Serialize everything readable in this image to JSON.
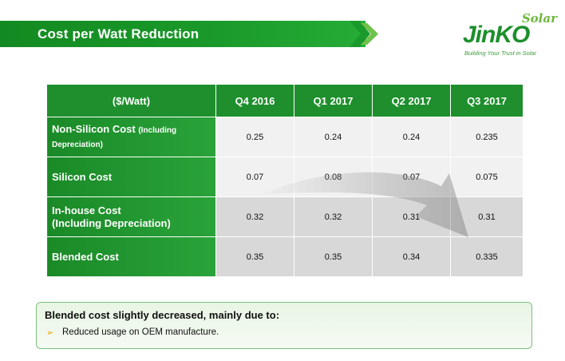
{
  "header": {
    "title": "Cost per Watt Reduction"
  },
  "logo": {
    "brand": "JinKO",
    "sub": "Solar",
    "tagline": "Building Your Trust in Solar"
  },
  "table": {
    "columns": [
      "($/Watt)",
      "Q4 2016",
      "Q1 2017",
      "Q2 2017",
      "Q3 2017"
    ],
    "rows": [
      {
        "label": "Non-Silicon Cost",
        "label_note": "(Including Depreciation)",
        "values": [
          "0.25",
          "0.24",
          "0.24",
          "0.235"
        ]
      },
      {
        "label": "Silicon Cost",
        "label_note": "",
        "values": [
          "0.07",
          "0.08",
          "0.07",
          "0.075"
        ]
      },
      {
        "label": "In-house Cost",
        "label_note": "(Including Depreciation)",
        "values": [
          "0.32",
          "0.32",
          "0.31",
          "0.31"
        ]
      },
      {
        "label": "Blended Cost",
        "label_note": "",
        "values": [
          "0.35",
          "0.35",
          "0.34",
          "0.335"
        ]
      }
    ]
  },
  "note": {
    "title": "Blended cost slightly decreased, mainly due to:",
    "bullet": "➢",
    "items": [
      "Reduced usage on OEM manufacture."
    ]
  },
  "colors": {
    "brand_green": "#1e8f2c",
    "accent_light_green": "#6fb83e",
    "bullet_orange": "#f0a800"
  }
}
